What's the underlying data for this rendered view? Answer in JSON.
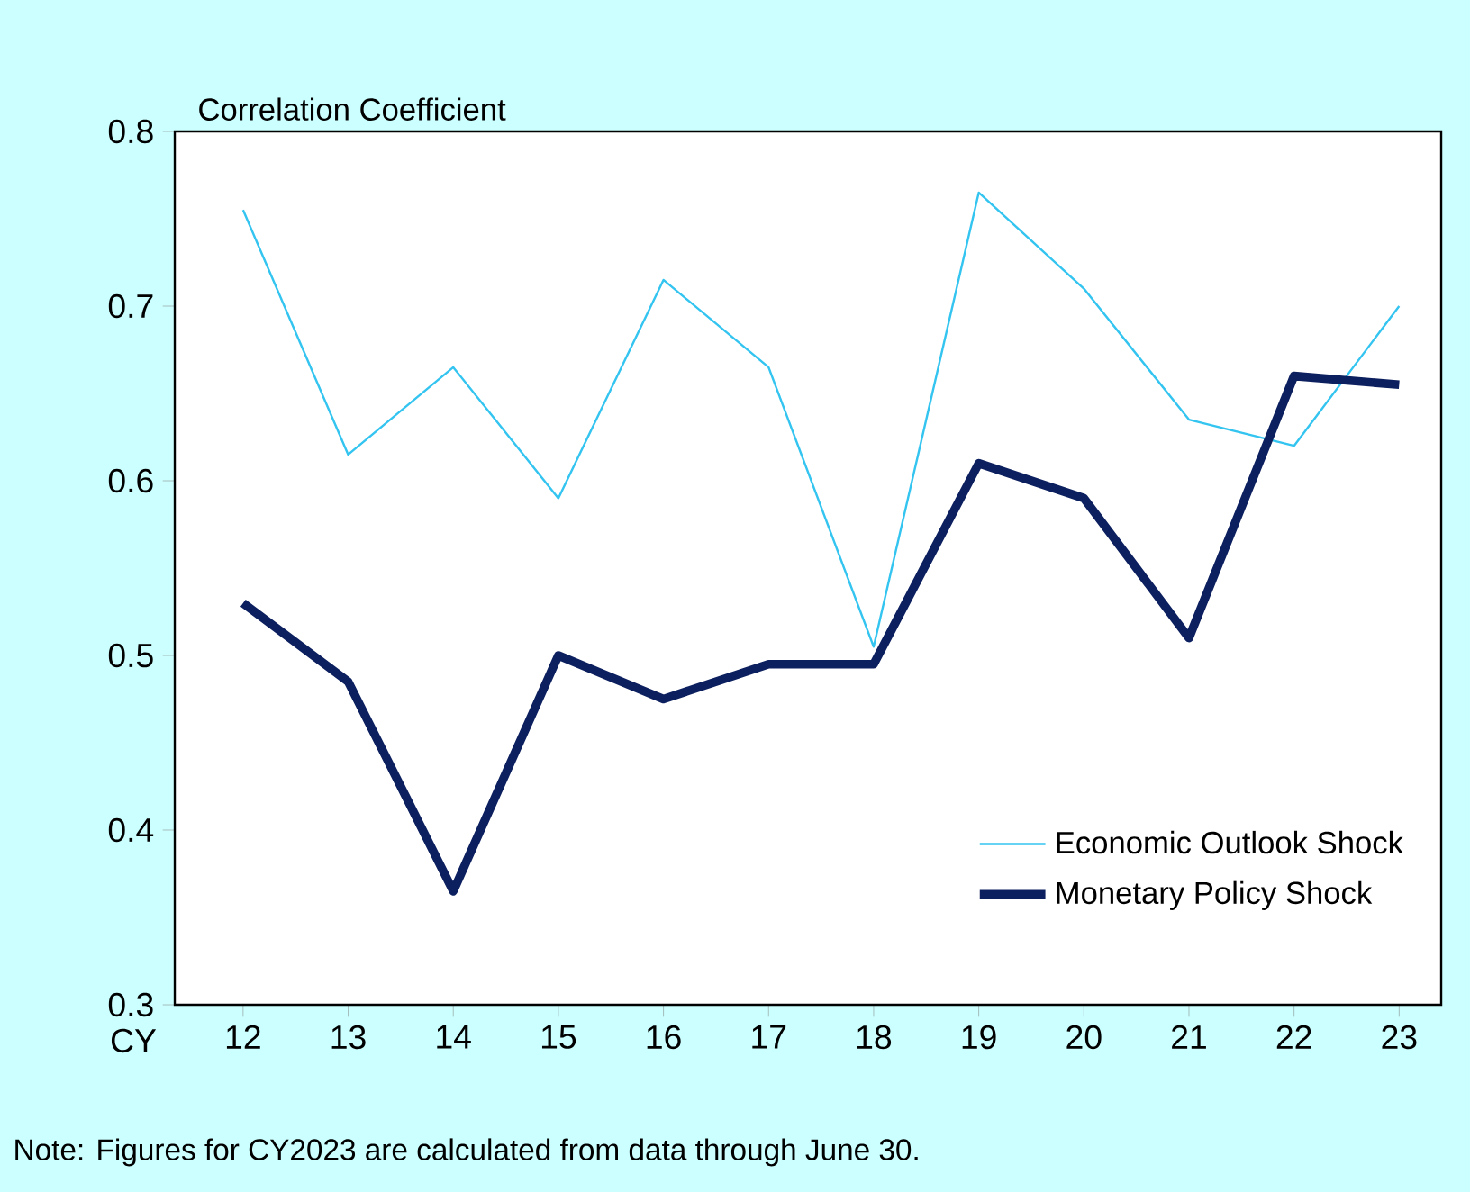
{
  "chart_data": {
    "type": "line",
    "ylabel": "Correlation Coefficient",
    "xlabel": "CY",
    "categories": [
      "12",
      "13",
      "14",
      "15",
      "16",
      "17",
      "18",
      "19",
      "20",
      "21",
      "22",
      "23"
    ],
    "series": [
      {
        "name": "Economic Outlook Shock",
        "color": "#33c4f0",
        "values": [
          0.755,
          0.615,
          0.665,
          0.59,
          0.715,
          0.665,
          0.505,
          0.765,
          0.71,
          0.635,
          0.62,
          0.7
        ]
      },
      {
        "name": "Monetary Policy Shock",
        "color": "#0c1f5e",
        "values": [
          0.53,
          0.485,
          0.365,
          0.5,
          0.475,
          0.495,
          0.495,
          0.61,
          0.59,
          0.51,
          0.66,
          0.655
        ]
      }
    ],
    "ylim": [
      0.3,
      0.8
    ],
    "yticks": [
      0.3,
      0.4,
      0.5,
      0.6,
      0.7,
      0.8
    ],
    "legend": "bottom right",
    "grid": false,
    "marker": "none",
    "line_style": "solid",
    "annotations": [
      "Note: Figures for CY2023 are calculated from data through June 30."
    ]
  }
}
